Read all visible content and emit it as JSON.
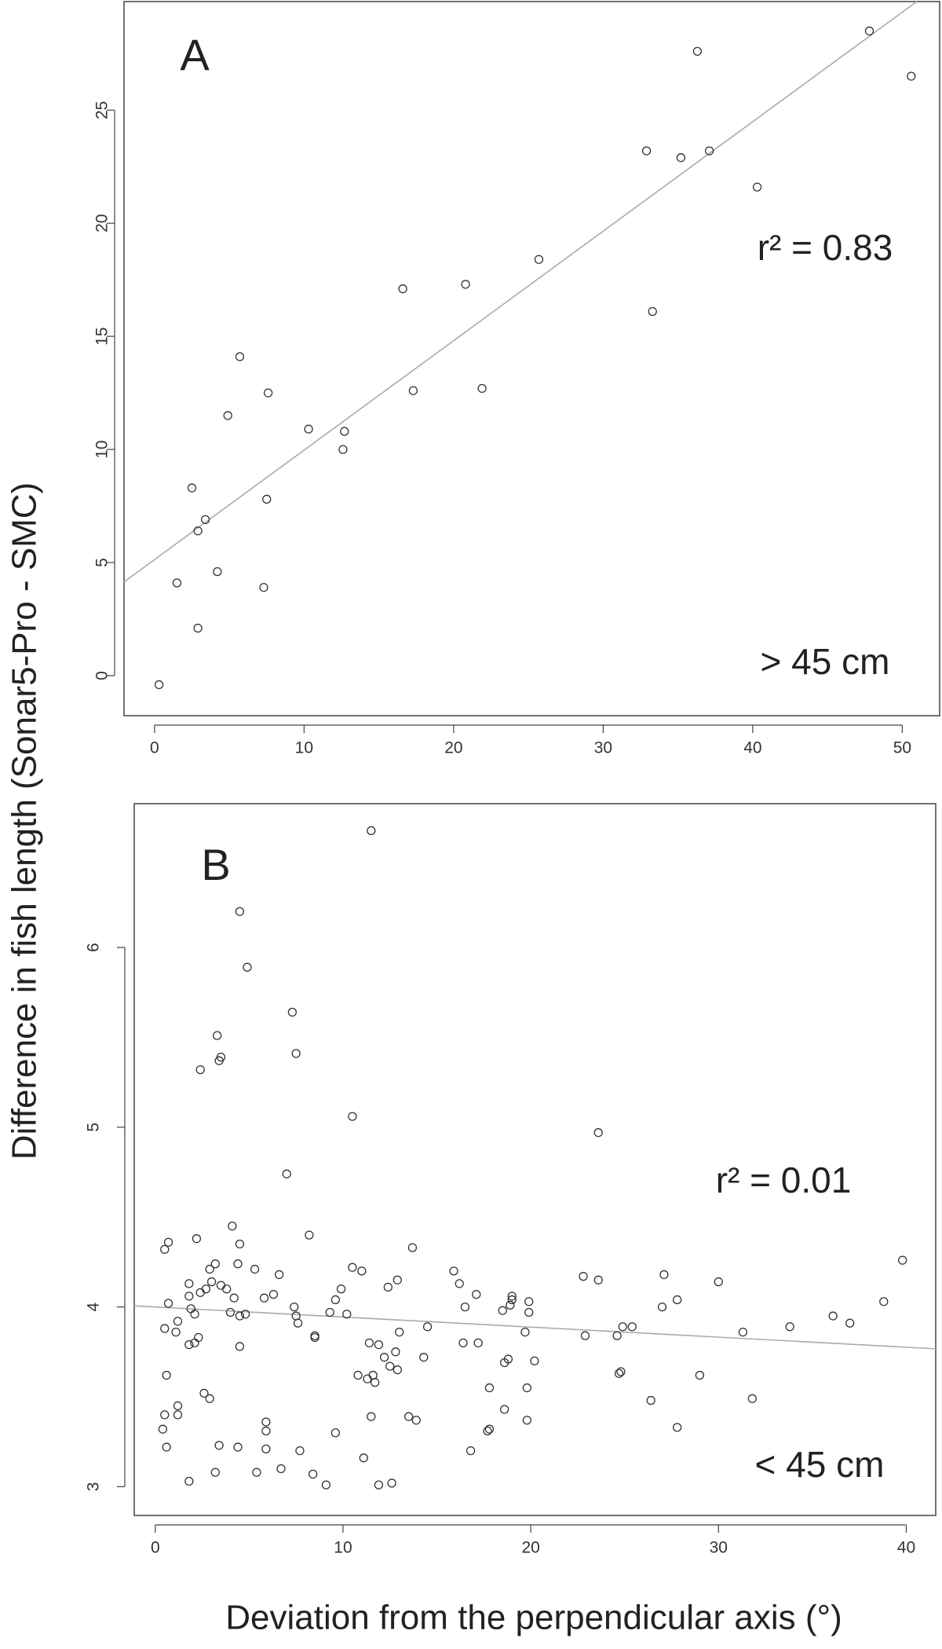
{
  "chart_data": [
    {
      "type": "scatter",
      "panel": "A",
      "ylabel": "Difference in fish length (Sonar5-Pro - SMC)",
      "annotation": "r² = 0.83",
      "size_class": "> 45 cm",
      "x": [
        0.3,
        1.5,
        2.5,
        2.9,
        2.9,
        3.4,
        4.2,
        4.9,
        5.7,
        7.3,
        7.5,
        7.6,
        10.3,
        12.6,
        12.7,
        16.6,
        17.3,
        20.8,
        21.9,
        25.7,
        32.9,
        33.3,
        35.2,
        36.3,
        37.1,
        40.3,
        47.8,
        50.6
      ],
      "values": [
        -0.4,
        4.1,
        8.3,
        2.1,
        6.4,
        6.9,
        4.6,
        11.5,
        14.1,
        3.9,
        7.8,
        12.5,
        10.9,
        10.0,
        10.8,
        17.1,
        12.6,
        17.3,
        12.7,
        18.4,
        23.2,
        16.1,
        22.9,
        27.6,
        23.2,
        21.6,
        28.5,
        26.5
      ],
      "trendline": {
        "intercept": 5.13,
        "slope": 0.484
      },
      "xlim": [
        -2.04,
        52.5
      ],
      "ylim": [
        -1.77,
        29.8
      ],
      "xticks": [
        0,
        10,
        20,
        30,
        40,
        50
      ],
      "yticks": [
        0,
        5,
        10,
        15,
        20,
        25
      ],
      "color": "#333333",
      "line_color": "#aaaaaa"
    },
    {
      "type": "scatter",
      "panel": "B",
      "xlabel": "Deviation from the perpendicular axis (°)",
      "annotation": "r² = 0.01",
      "size_class": "< 45 cm",
      "x": [
        11.5,
        4.5,
        4.9,
        7.3,
        7.5,
        3.3,
        3.5,
        3.4,
        2.4,
        10.5,
        23.6,
        7.0,
        8.2,
        4.1,
        13.7,
        0.5,
        0.7,
        2.2,
        4.5,
        39.8,
        4.4,
        3.2,
        2.9,
        3.0,
        1.8,
        5.3,
        6.6,
        10.5,
        11.0,
        12.9,
        15.9,
        16.2,
        22.8,
        23.6,
        27.1,
        30.0,
        17.1,
        19.0,
        19.9,
        27.8,
        38.8,
        27.0,
        12.4,
        9.9,
        6.3,
        5.8,
        0.7,
        1.8,
        2.4,
        3.8,
        4.2,
        3.5,
        2.7,
        7.4,
        9.6,
        10.2,
        4.0,
        4.5,
        4.8,
        1.9,
        2.1,
        1.2,
        0.5,
        1.1,
        7.6,
        7.5,
        9.3,
        8.5,
        8.5,
        2.3,
        1.8,
        2.1,
        4.5,
        11.4,
        11.9,
        13.0,
        14.5,
        16.4,
        17.2,
        16.5,
        18.5,
        18.9,
        19.0,
        19.9,
        19.7,
        20.2,
        18.8,
        18.6,
        22.9,
        24.6,
        24.9,
        25.4,
        31.3,
        33.8,
        36.1,
        37.0,
        12.2,
        12.5,
        12.8,
        12.9,
        14.3,
        11.3,
        11.6,
        11.7,
        10.8,
        0.6,
        1.2,
        1.2,
        0.5,
        0.4,
        0.6,
        2.6,
        2.9,
        5.9,
        5.9,
        5.9,
        3.4,
        4.4,
        7.7,
        9.6,
        11.5,
        13.5,
        13.9,
        17.8,
        17.7,
        18.6,
        17.8,
        19.8,
        19.8,
        24.8,
        24.7,
        26.4,
        29.0,
        31.8,
        27.8,
        16.8,
        11.1,
        3.2,
        5.4,
        6.7,
        8.4,
        1.8,
        9.1,
        11.9,
        12.6
      ],
      "values": [
        6.65,
        6.2,
        5.89,
        5.64,
        5.41,
        5.51,
        5.39,
        5.37,
        5.32,
        5.06,
        4.97,
        4.74,
        4.4,
        4.45,
        4.33,
        4.32,
        4.36,
        4.38,
        4.35,
        4.26,
        4.24,
        4.24,
        4.21,
        4.14,
        4.13,
        4.21,
        4.18,
        4.22,
        4.2,
        4.15,
        4.2,
        4.13,
        4.17,
        4.15,
        4.18,
        4.14,
        4.07,
        4.06,
        4.03,
        4.04,
        4.03,
        4.0,
        4.11,
        4.1,
        4.07,
        4.05,
        4.02,
        4.06,
        4.08,
        4.1,
        4.05,
        4.12,
        4.1,
        4.0,
        4.04,
        3.96,
        3.97,
        3.95,
        3.96,
        3.99,
        3.96,
        3.92,
        3.88,
        3.86,
        3.91,
        3.95,
        3.97,
        3.83,
        3.84,
        3.83,
        3.79,
        3.8,
        3.78,
        3.8,
        3.79,
        3.86,
        3.89,
        3.8,
        3.8,
        4.0,
        3.98,
        4.01,
        4.04,
        3.97,
        3.86,
        3.7,
        3.71,
        3.69,
        3.84,
        3.84,
        3.89,
        3.89,
        3.86,
        3.89,
        3.95,
        3.91,
        3.72,
        3.67,
        3.75,
        3.65,
        3.72,
        3.6,
        3.62,
        3.58,
        3.62,
        3.62,
        3.45,
        3.4,
        3.4,
        3.32,
        3.22,
        3.52,
        3.49,
        3.36,
        3.31,
        3.21,
        3.23,
        3.22,
        3.2,
        3.3,
        3.39,
        3.39,
        3.37,
        3.32,
        3.31,
        3.43,
        3.55,
        3.55,
        3.37,
        3.64,
        3.63,
        3.48,
        3.62,
        3.49,
        3.33,
        3.2,
        3.16,
        3.08,
        3.08,
        3.1,
        3.07,
        3.03,
        3.01,
        3.01,
        3.02
      ],
      "trendline": {
        "intercept": 4.0,
        "slope": -0.0056
      },
      "xlim": [
        -1.12,
        41.57
      ],
      "ylim": [
        2.84,
        6.8
      ],
      "xticks": [
        0,
        10,
        20,
        30,
        40
      ],
      "yticks": [
        3,
        4,
        5,
        6
      ],
      "color": "#333333",
      "line_color": "#aaaaaa"
    }
  ]
}
